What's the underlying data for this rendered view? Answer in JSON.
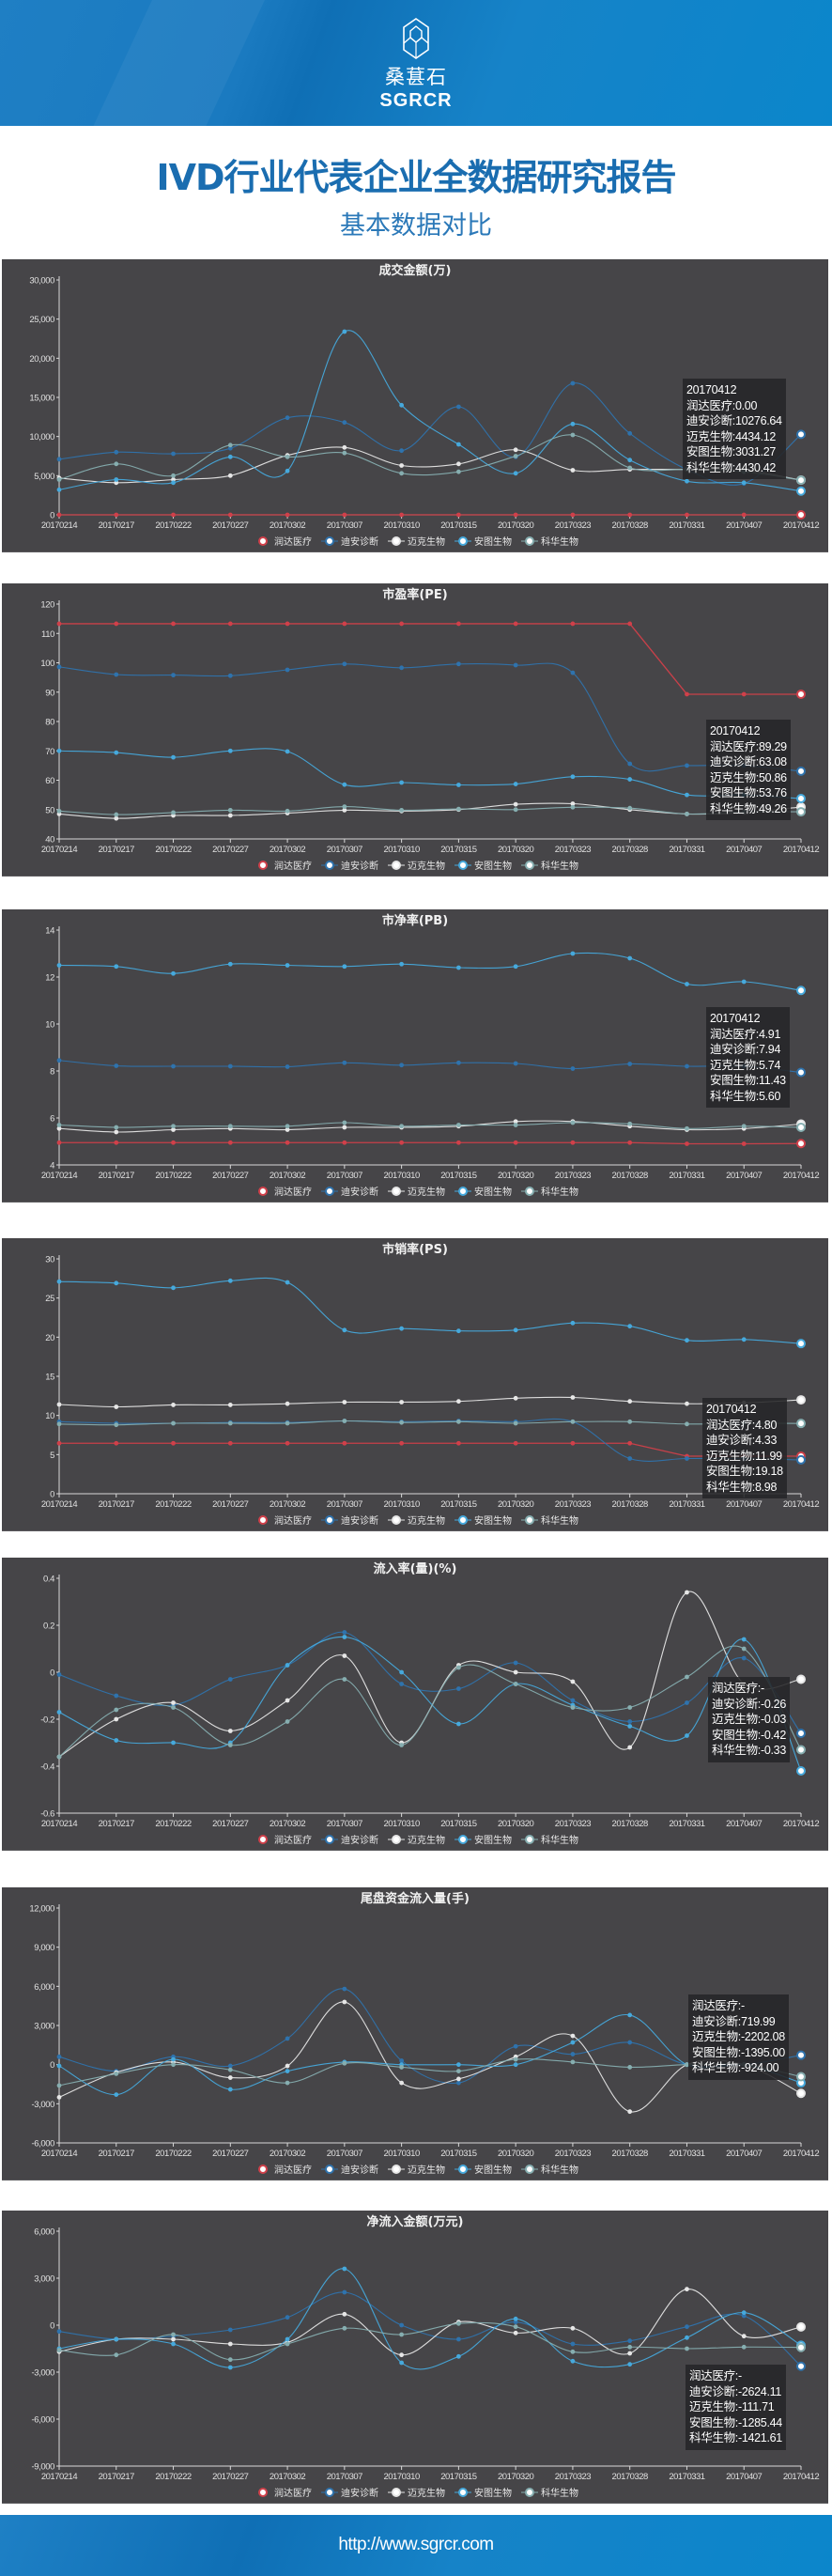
{
  "header": {
    "logo_cn": "桑葚石",
    "logo_en": "SGRCR"
  },
  "report": {
    "title": "IVD行业代表企业全数据研究报告",
    "subtitle": "基本数据对比"
  },
  "footer": {
    "url": "http://www.sgrcr.com"
  },
  "series_meta": [
    {
      "name": "润达医疗",
      "color": "#d0404a"
    },
    {
      "name": "迪安诊断",
      "color": "#2f73ad"
    },
    {
      "name": "迈克生物",
      "color": "#e6e6e6"
    },
    {
      "name": "安图生物",
      "color": "#46a9dc"
    },
    {
      "name": "科华生物",
      "color": "#86aeb0"
    }
  ],
  "chart_data": [
    {
      "type": "line",
      "title": "成交金额(万)",
      "x": [
        "20170214",
        "20170217",
        "20170222",
        "20170227",
        "20170302",
        "20170307",
        "20170310",
        "20170315",
        "20170320",
        "20170323",
        "20170328",
        "20170331",
        "20170407",
        "20170412"
      ],
      "ylim": [
        0,
        30000
      ],
      "yticks": [
        0,
        5000,
        10000,
        15000,
        20000,
        25000,
        30000
      ],
      "ytick_labels": [
        "0",
        "5,000",
        "10,000",
        "15,000",
        "20,000",
        "25,000",
        "30,000"
      ],
      "legend": "bottom",
      "series": [
        {
          "name": "润达医疗",
          "values": [
            0,
            0,
            0,
            0,
            0,
            0,
            0,
            0,
            0,
            0,
            0,
            0,
            0,
            0
          ]
        },
        {
          "name": "迪安诊断",
          "values": [
            7100,
            8000,
            7800,
            8500,
            12400,
            11800,
            8200,
            13800,
            7400,
            16800,
            10400,
            5800,
            4000,
            10276.64
          ]
        },
        {
          "name": "迈克生物",
          "values": [
            4700,
            4100,
            4500,
            5000,
            7600,
            8600,
            6300,
            6500,
            8300,
            5700,
            5800,
            5800,
            5700,
            4434.12
          ]
        },
        {
          "name": "安图生物",
          "values": [
            3200,
            4500,
            4100,
            7400,
            5600,
            23400,
            14000,
            9000,
            5300,
            11600,
            7000,
            4300,
            4100,
            3031.27
          ]
        },
        {
          "name": "科华生物",
          "values": [
            4500,
            6500,
            5000,
            8900,
            7400,
            7900,
            5300,
            5500,
            7500,
            10200,
            6000,
            5800,
            5500,
            4430.42
          ]
        }
      ],
      "tooltip": {
        "date": "20170412",
        "lines": [
          "润达医疗:0.00",
          "迪安诊断:10276.64",
          "迈克生物:4434.12",
          "安图生物:3031.27",
          "科华生物:4430.42"
        ]
      }
    },
    {
      "type": "line",
      "title": "市盈率(PE)",
      "x": [
        "20170214",
        "20170217",
        "20170222",
        "20170227",
        "20170302",
        "20170307",
        "20170310",
        "20170315",
        "20170320",
        "20170323",
        "20170328",
        "20170331",
        "20170407",
        "20170412"
      ],
      "ylim": [
        40,
        120
      ],
      "yticks": [
        40,
        50,
        60,
        70,
        80,
        90,
        100,
        110,
        120
      ],
      "ytick_labels": [
        "40",
        "50",
        "60",
        "70",
        "80",
        "90",
        "100",
        "110",
        "120"
      ],
      "legend": "bottom",
      "series": [
        {
          "name": "润达医疗",
          "values": [
            113.3,
            113.3,
            113.3,
            113.3,
            113.3,
            113.3,
            113.3,
            113.3,
            113.3,
            113.3,
            113.3,
            89.29,
            89.29,
            89.29
          ]
        },
        {
          "name": "迪安诊断",
          "values": [
            98.6,
            96,
            95.8,
            95.6,
            97.6,
            99.6,
            98.3,
            99.6,
            99.2,
            96.6,
            65.6,
            65.0,
            65.0,
            63.08
          ]
        },
        {
          "name": "迈克生物",
          "values": [
            48.5,
            47,
            48,
            48,
            48.8,
            49.8,
            49.5,
            50,
            51.8,
            52,
            50,
            48.5,
            49,
            50.86
          ]
        },
        {
          "name": "安图生物",
          "values": [
            70,
            69.4,
            67.8,
            70,
            69.8,
            58.5,
            59.2,
            58.4,
            58.7,
            61.2,
            60.3,
            55,
            55,
            53.76
          ]
        },
        {
          "name": "科华生物",
          "values": [
            49.5,
            48.3,
            49,
            49.8,
            49.5,
            51,
            49.8,
            50.2,
            50,
            50.8,
            50.5,
            48.5,
            49.2,
            49.26
          ]
        }
      ],
      "tooltip": {
        "date": "20170412",
        "lines": [
          "润达医疗:89.29",
          "迪安诊断:63.08",
          "迈克生物:50.86",
          "安图生物:53.76",
          "科华生物:49.26"
        ]
      }
    },
    {
      "type": "line",
      "title": "市净率(PB)",
      "x": [
        "20170214",
        "20170217",
        "20170222",
        "20170227",
        "20170302",
        "20170307",
        "20170310",
        "20170315",
        "20170320",
        "20170323",
        "20170328",
        "20170331",
        "20170407",
        "20170412"
      ],
      "ylim": [
        4,
        14
      ],
      "yticks": [
        4,
        6,
        8,
        10,
        12,
        14
      ],
      "ytick_labels": [
        "4",
        "6",
        "8",
        "10",
        "12",
        "14"
      ],
      "legend": "bottom",
      "series": [
        {
          "name": "润达医疗",
          "values": [
            4.95,
            4.95,
            4.95,
            4.95,
            4.95,
            4.95,
            4.95,
            4.95,
            4.95,
            4.95,
            4.95,
            4.9,
            4.9,
            4.91
          ]
        },
        {
          "name": "迪安诊断",
          "values": [
            8.45,
            8.22,
            8.2,
            8.2,
            8.18,
            8.35,
            8.25,
            8.35,
            8.32,
            8.1,
            8.3,
            8.2,
            8.2,
            7.94
          ]
        },
        {
          "name": "迈克生物",
          "values": [
            5.55,
            5.4,
            5.5,
            5.55,
            5.5,
            5.6,
            5.6,
            5.65,
            5.85,
            5.85,
            5.65,
            5.5,
            5.55,
            5.74
          ]
        },
        {
          "name": "安图生物",
          "values": [
            12.5,
            12.45,
            12.15,
            12.55,
            12.5,
            12.45,
            12.55,
            12.4,
            12.45,
            13.0,
            12.8,
            11.7,
            11.8,
            11.43
          ]
        },
        {
          "name": "科华生物",
          "values": [
            5.7,
            5.6,
            5.65,
            5.65,
            5.65,
            5.8,
            5.65,
            5.7,
            5.7,
            5.8,
            5.75,
            5.55,
            5.65,
            5.6
          ]
        }
      ],
      "tooltip": {
        "date": "20170412",
        "lines": [
          "润达医疗:4.91",
          "迪安诊断:7.94",
          "迈克生物:5.74",
          "安图生物:11.43",
          "科华生物:5.60"
        ]
      }
    },
    {
      "type": "line",
      "title": "市销率(PS)",
      "x": [
        "20170214",
        "20170217",
        "20170222",
        "20170227",
        "20170302",
        "20170307",
        "20170310",
        "20170315",
        "20170320",
        "20170323",
        "20170328",
        "20170331",
        "20170407",
        "20170412"
      ],
      "ylim": [
        0,
        30
      ],
      "yticks": [
        0,
        5,
        10,
        15,
        20,
        25,
        30
      ],
      "ytick_labels": [
        "0",
        "5",
        "10",
        "15",
        "20",
        "25",
        "30"
      ],
      "legend": "bottom",
      "series": [
        {
          "name": "润达医疗",
          "values": [
            6.45,
            6.45,
            6.45,
            6.45,
            6.45,
            6.45,
            6.45,
            6.45,
            6.45,
            6.45,
            6.45,
            4.8,
            4.8,
            4.8
          ]
        },
        {
          "name": "迪安诊断",
          "values": [
            9.2,
            9.0,
            9.0,
            9.1,
            9.1,
            9.3,
            9.2,
            9.3,
            9.2,
            9.2,
            4.5,
            4.5,
            4.5,
            4.33
          ]
        },
        {
          "name": "迈克生物",
          "values": [
            11.4,
            11.1,
            11.35,
            11.35,
            11.5,
            11.7,
            11.7,
            11.8,
            12.2,
            12.3,
            11.8,
            11.5,
            11.6,
            11.99
          ]
        },
        {
          "name": "安图生物",
          "values": [
            27.1,
            26.9,
            26.3,
            27.2,
            27.0,
            20.9,
            21.1,
            20.8,
            20.9,
            21.8,
            21.4,
            19.6,
            19.7,
            19.18
          ]
        },
        {
          "name": "科华生物",
          "values": [
            8.9,
            8.8,
            9.0,
            9.0,
            9.0,
            9.3,
            9.1,
            9.2,
            9.0,
            9.2,
            9.2,
            8.9,
            9.0,
            8.98
          ]
        }
      ],
      "tooltip": {
        "date": "20170412",
        "lines": [
          "润达医疗:4.80",
          "迪安诊断:4.33",
          "迈克生物:11.99",
          "安图生物:19.18",
          "科华生物:8.98"
        ]
      }
    },
    {
      "type": "line",
      "title": "流入率(量)(%)",
      "x": [
        "20170214",
        "20170217",
        "20170222",
        "20170227",
        "20170302",
        "20170307",
        "20170310",
        "20170315",
        "20170320",
        "20170323",
        "20170328",
        "20170331",
        "20170407",
        "20170412"
      ],
      "ylim": [
        -0.6,
        0.4
      ],
      "yticks": [
        -0.6,
        -0.4,
        -0.2,
        0,
        0.2,
        0.4
      ],
      "ytick_labels": [
        "-0.6",
        "-0.4",
        "-0.2",
        "0",
        "0.2",
        "0.4"
      ],
      "legend": "bottom",
      "series": [
        {
          "name": "润达医疗",
          "values": null
        },
        {
          "name": "迪安诊断",
          "values": [
            -0.01,
            -0.1,
            -0.14,
            -0.03,
            0.03,
            0.17,
            -0.05,
            -0.07,
            0.04,
            -0.12,
            -0.21,
            -0.13,
            0.06,
            -0.26
          ]
        },
        {
          "name": "迈克生物",
          "values": [
            -0.36,
            -0.2,
            -0.13,
            -0.25,
            -0.12,
            0.07,
            -0.3,
            0.03,
            0.0,
            -0.04,
            -0.32,
            0.34,
            -0.05,
            -0.03
          ]
        },
        {
          "name": "安图生物",
          "values": [
            -0.17,
            -0.29,
            -0.3,
            -0.3,
            0.03,
            0.15,
            0.0,
            -0.22,
            -0.05,
            -0.14,
            -0.23,
            -0.27,
            0.14,
            -0.42
          ]
        },
        {
          "name": "科华生物",
          "values": [
            -0.36,
            -0.16,
            -0.15,
            -0.31,
            -0.21,
            -0.03,
            -0.31,
            0.02,
            -0.05,
            -0.15,
            -0.15,
            -0.02,
            0.1,
            -0.33
          ]
        }
      ],
      "tooltip": {
        "date": null,
        "lines": [
          "润达医疗:-",
          "迪安诊断:-0.26",
          "迈克生物:-0.03",
          "安图生物:-0.42",
          "科华生物:-0.33"
        ]
      }
    },
    {
      "type": "line",
      "title": "尾盘资金流入量(手)",
      "x": [
        "20170214",
        "20170217",
        "20170222",
        "20170227",
        "20170302",
        "20170307",
        "20170310",
        "20170315",
        "20170320",
        "20170323",
        "20170328",
        "20170331",
        "20170407",
        "20170412"
      ],
      "ylim": [
        -6000,
        12000
      ],
      "yticks": [
        -6000,
        -3000,
        0,
        3000,
        6000,
        9000,
        12000
      ],
      "ytick_labels": [
        "-6,000",
        "-3,000",
        "0",
        "3,000",
        "6,000",
        "9,000",
        "12,000"
      ],
      "legend": "bottom",
      "series": [
        {
          "name": "润达医疗",
          "values": null
        },
        {
          "name": "迪安诊断",
          "values": [
            600,
            -500,
            600,
            -100,
            2000,
            5800,
            300,
            -1400,
            1400,
            800,
            1700,
            0,
            0,
            719.99
          ]
        },
        {
          "name": "迈克生物",
          "values": [
            -2500,
            -600,
            200,
            -1000,
            -100,
            4800,
            -1400,
            -1100,
            600,
            2200,
            -3600,
            0,
            0,
            -2202.08
          ]
        },
        {
          "name": "安图生物",
          "values": [
            -100,
            -2300,
            400,
            -1900,
            -500,
            200,
            0,
            0,
            0,
            1700,
            3800,
            0,
            0,
            -1395.0
          ]
        },
        {
          "name": "科华生物",
          "values": [
            -1600,
            -700,
            0,
            -400,
            -1400,
            100,
            -200,
            -500,
            400,
            200,
            -200,
            0,
            0,
            -924.0
          ]
        }
      ],
      "tooltip": {
        "date": null,
        "lines": [
          "润达医疗:-",
          "迪安诊断:719.99",
          "迈克生物:-2202.08",
          "安图生物:-1395.00",
          "科华生物:-924.00"
        ]
      }
    },
    {
      "type": "line",
      "title": "净流入金额(万元)",
      "x": [
        "20170214",
        "20170217",
        "20170222",
        "20170227",
        "20170302",
        "20170307",
        "20170310",
        "20170315",
        "20170320",
        "20170323",
        "20170328",
        "20170331",
        "20170407",
        "20170412"
      ],
      "ylim": [
        -9000,
        6000
      ],
      "yticks": [
        -9000,
        -6000,
        -3000,
        0,
        3000,
        6000
      ],
      "ytick_labels": [
        "-9,000",
        "-6,000",
        "-3,000",
        "0",
        "3,000",
        "6,000"
      ],
      "legend": "bottom",
      "series": [
        {
          "name": "润达医疗",
          "values": null
        },
        {
          "name": "迪安诊断",
          "values": [
            -400,
            -900,
            -700,
            -300,
            500,
            2100,
            0,
            -900,
            200,
            -1200,
            -1000,
            -100,
            600,
            -2624.11
          ]
        },
        {
          "name": "迈克生物",
          "values": [
            -1700,
            -900,
            -900,
            -1200,
            -1100,
            700,
            -1900,
            200,
            -500,
            -200,
            -1800,
            2300,
            -700,
            -111.71
          ]
        },
        {
          "name": "安图生物",
          "values": [
            -1500,
            -900,
            -1200,
            -2700,
            -900,
            3600,
            -2400,
            -2000,
            400,
            -2300,
            -2500,
            -800,
            800,
            -1285.44
          ]
        },
        {
          "name": "科华生物",
          "values": [
            -1600,
            -1900,
            -600,
            -2200,
            -1200,
            -200,
            -600,
            100,
            -100,
            -1700,
            -1400,
            -1500,
            -1400,
            -1421.61
          ]
        }
      ],
      "tooltip": {
        "date": null,
        "lines": [
          "润达医疗:-",
          "迪安诊断:-2624.11",
          "迈克生物:-111.71",
          "安图生物:-1285.44",
          "科华生物:-1421.61"
        ]
      }
    }
  ]
}
